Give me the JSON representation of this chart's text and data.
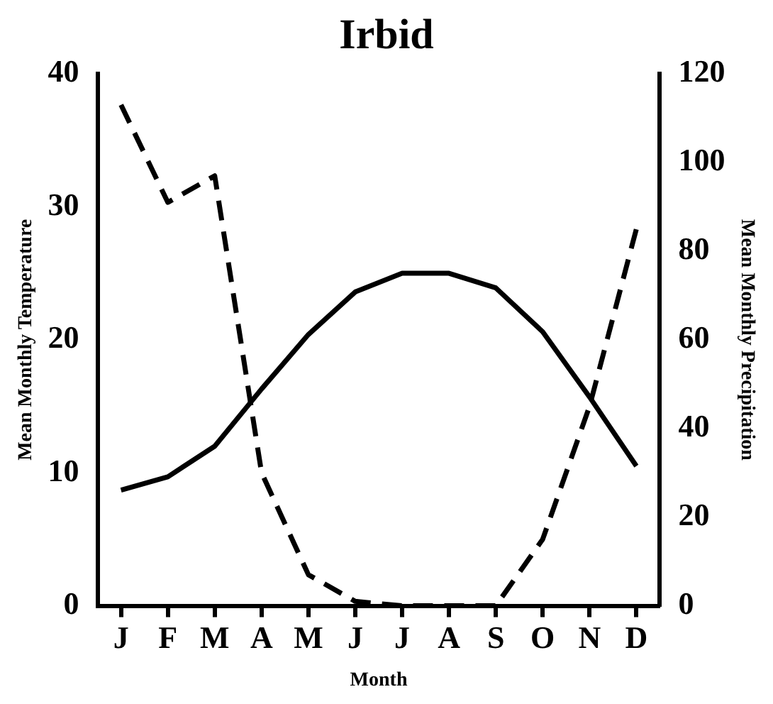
{
  "chart_data": {
    "type": "line",
    "title": "Irbid",
    "xlabel": "Month",
    "ylabel": "Mean Monthly Temperature",
    "y2label": "Mean Monthly Precipitation",
    "categories": [
      "J",
      "F",
      "M",
      "A",
      "M",
      "J",
      "J",
      "A",
      "S",
      "O",
      "N",
      "D"
    ],
    "series": [
      {
        "color": "#000000",
        "line_style": "solid",
        "values": [
          8.7,
          9.7,
          12,
          16.3,
          20.4,
          23.6,
          25,
          25,
          23.9,
          20.6,
          15.7,
          10.5
        ]
      },
      {
        "color": "#000000",
        "line_style": "dashed",
        "axis": "y2",
        "values": [
          113,
          91,
          97,
          30,
          7,
          1,
          0,
          0,
          0,
          15,
          45,
          85
        ]
      }
    ],
    "ylim": [
      0,
      40
    ],
    "yticks": [
      0,
      10,
      20,
      30,
      40
    ],
    "y2lim": [
      0,
      120
    ],
    "y2ticks": [
      0,
      20,
      40,
      60,
      80,
      100,
      120
    ],
    "marker": "none",
    "grid": false,
    "legend": false
  }
}
